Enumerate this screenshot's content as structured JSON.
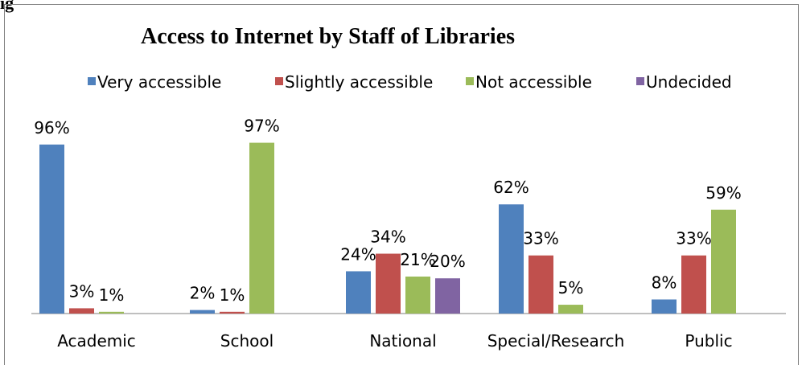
{
  "figure_label": "ig",
  "chart_data": {
    "type": "bar",
    "title": "Access to Internet by Staff of Libraries",
    "categories": [
      "Academic",
      "School",
      "National",
      "Special/Research",
      "Public"
    ],
    "series": [
      {
        "name": "Very accessible",
        "color": "#4f81bd",
        "values": [
          96,
          2,
          24,
          62,
          8
        ],
        "labels": [
          "96%",
          "2%",
          "24%",
          "62%",
          "8%"
        ]
      },
      {
        "name": "Slightly accessible",
        "color": "#c0504d",
        "values": [
          3,
          1,
          34,
          33,
          33
        ],
        "labels": [
          "3%",
          "1%",
          "34%",
          "33%",
          "33%"
        ]
      },
      {
        "name": "Not accessible",
        "color": "#9bbb59",
        "values": [
          1,
          97,
          21,
          5,
          59
        ],
        "labels": [
          "1%",
          "97%",
          "21%",
          "5%",
          "59%"
        ]
      },
      {
        "name": "Undecided",
        "color": "#8064a2",
        "values": [
          null,
          null,
          20,
          null,
          null
        ],
        "labels": [
          null,
          null,
          "20%",
          null,
          null
        ]
      }
    ],
    "ylim": [
      0,
      100
    ],
    "legend_position": "top",
    "grid": false
  }
}
